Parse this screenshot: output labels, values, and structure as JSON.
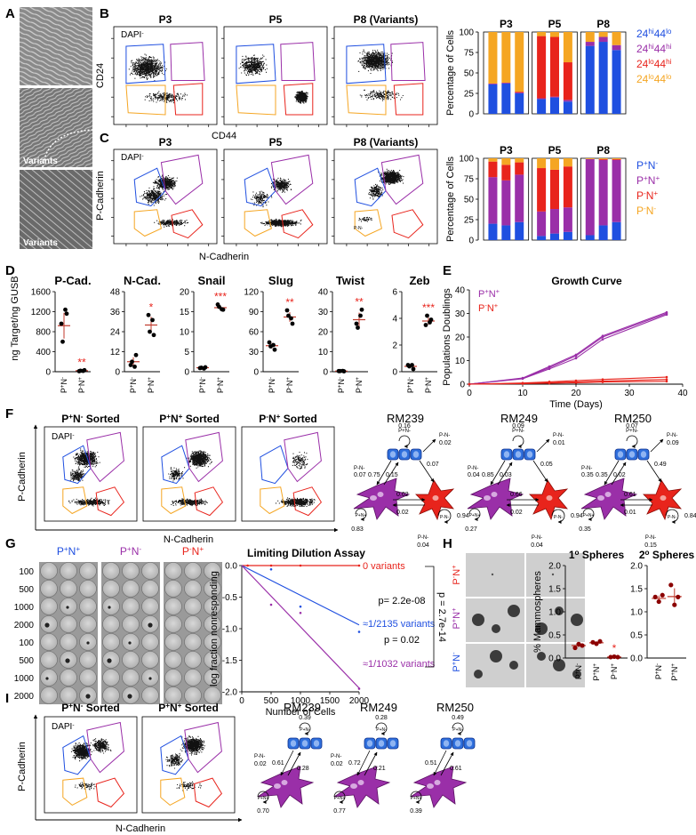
{
  "figure": {
    "panel_labels": [
      "A",
      "B",
      "C",
      "D",
      "E",
      "F",
      "G",
      "H",
      "I"
    ],
    "colors": {
      "blue": "#1f4fe0",
      "purple": "#9a2fa8",
      "red": "#e8241c",
      "orange": "#f5a623",
      "darkred": "#c80000"
    }
  },
  "panelA": {
    "variants_label": "Variants"
  },
  "panelB": {
    "gate_note": "DAPI",
    "gate_sup": "-",
    "plot_titles": [
      "P3",
      "P5",
      "P8 (Variants)"
    ],
    "xlabel": "CD44",
    "ylabel": "CD24"
  },
  "panelC": {
    "gate_note": "DAPI",
    "gate_sup": "-",
    "plot_titles": [
      "P3",
      "P5",
      "P8 (Variants)"
    ],
    "xlabel": "N-Cadherin",
    "ylabel": "P-Cadherin",
    "small_label": "P-N-"
  },
  "chart_data": [
    {
      "id": "B-bar",
      "type": "bar",
      "stacked": true,
      "title": "",
      "ylabel": "Percentage of Cells",
      "ylim": [
        0,
        100
      ],
      "yticks": [
        "0",
        "25",
        "50",
        "75",
        "100"
      ],
      "group_labels": [
        "P3",
        "P5",
        "P8"
      ],
      "series": [
        {
          "name": "24hi44lo",
          "base": "24",
          "sup1": "hi",
          "mid": "44",
          "sup2": "lo",
          "color": "#1f4fe0",
          "values": [
            36,
            37,
            25,
            18,
            20,
            15,
            83,
            88,
            78
          ]
        },
        {
          "name": "24hi44hi",
          "base": "24",
          "sup1": "hi",
          "mid": "44",
          "sup2": "hi",
          "color": "#9a2fa8",
          "values": [
            1,
            1,
            1,
            1,
            1,
            2,
            5,
            6,
            6
          ]
        },
        {
          "name": "24lo44hi",
          "base": "24",
          "sup1": "lo",
          "mid": "44",
          "sup2": "hi",
          "color": "#e8241c",
          "values": [
            0,
            0,
            1,
            76,
            73,
            46,
            0,
            0,
            0
          ]
        },
        {
          "name": "24lo44lo",
          "base": "24",
          "sup1": "lo",
          "mid": "44",
          "sup2": "lo",
          "color": "#f5a623",
          "values": [
            63,
            62,
            73,
            5,
            6,
            37,
            12,
            6,
            16
          ]
        }
      ]
    },
    {
      "id": "C-bar",
      "type": "bar",
      "stacked": true,
      "ylabel": "Percentage of Cells",
      "ylim": [
        0,
        100
      ],
      "yticks": [
        "0",
        "25",
        "50",
        "75",
        "100"
      ],
      "group_labels": [
        "P3",
        "P5",
        "P8"
      ],
      "series": [
        {
          "name": "P+N-",
          "base": "P",
          "sup1": "+",
          "mid": "N",
          "sup2": "-",
          "color": "#1f4fe0",
          "values": [
            20,
            18,
            22,
            5,
            8,
            10,
            6,
            18,
            22
          ]
        },
        {
          "name": "P+N+",
          "base": "P",
          "sup1": "+",
          "mid": "N",
          "sup2": "+",
          "color": "#9a2fa8",
          "values": [
            57,
            55,
            58,
            30,
            30,
            30,
            93,
            80,
            76
          ]
        },
        {
          "name": "P-N+",
          "base": "P",
          "sup1": "-",
          "mid": "N",
          "sup2": "+",
          "color": "#e8241c",
          "values": [
            19,
            19,
            15,
            53,
            48,
            50,
            0,
            1,
            1
          ]
        },
        {
          "name": "P-N-",
          "base": "P",
          "sup1": "-",
          "mid": "N",
          "sup2": "-",
          "color": "#f5a623",
          "values": [
            4,
            8,
            5,
            12,
            14,
            10,
            1,
            1,
            1
          ]
        }
      ]
    },
    {
      "id": "D-dot",
      "type": "scatter",
      "ylabel": "ng Target/ng GUSB",
      "x_categories": [
        [
          "P",
          "+",
          "N",
          "-"
        ],
        [
          "P",
          "-",
          "N",
          "+"
        ]
      ],
      "genes": [
        {
          "name": "P-Cad.",
          "ymax": 1600,
          "yticks": [
            "0",
            "400",
            "800",
            "1200",
            "1600"
          ],
          "sig": "**",
          "sig_on": 1,
          "points": [
            [
              960,
              1160,
              600,
              1240
            ],
            [
              10,
              30,
              20,
              15
            ]
          ],
          "means": [
            920,
            20
          ]
        },
        {
          "name": "N-Cad.",
          "ymax": 48,
          "yticks": [
            "0",
            "12",
            "24",
            "36",
            "48"
          ],
          "sig": "*",
          "sig_on": 1,
          "points": [
            [
              4,
              10,
              6,
              3
            ],
            [
              34,
              22,
              24,
              31
            ]
          ],
          "means": [
            6,
            28
          ]
        },
        {
          "name": "Snail",
          "ymax": 20,
          "yticks": [
            "0",
            "5",
            "10",
            "15",
            "20"
          ],
          "sig": "***",
          "sig_on": 1,
          "points": [
            [
              0.9,
              1.1,
              1.0,
              0.8
            ],
            [
              16.8,
              15.5,
              16.2,
              15.6
            ]
          ],
          "means": [
            1,
            16
          ]
        },
        {
          "name": "Slug",
          "ymax": 120,
          "yticks": [
            "0",
            "30",
            "60",
            "90",
            "120"
          ],
          "sig": "**",
          "sig_on": 1,
          "points": [
            [
              44,
              33,
              38,
              40
            ],
            [
              92,
              72,
              84,
              80
            ]
          ],
          "means": [
            39,
            82
          ]
        },
        {
          "name": "Twist",
          "ymax": 40,
          "yticks": [
            "0",
            "10",
            "20",
            "30",
            "40"
          ],
          "sig": "**",
          "sig_on": 1,
          "points": [
            [
              0.3,
              0.2,
              0.3,
              0.4
            ],
            [
              24,
              31,
              22,
              28
            ]
          ],
          "means": [
            0.3,
            26
          ]
        },
        {
          "name": "Zeb",
          "ymax": 6,
          "yticks": [
            "0",
            "2",
            "4",
            "6"
          ],
          "sig": "***",
          "sig_on": 1,
          "points": [
            [
              0.5,
              0.2,
              0.4,
              0.5
            ],
            [
              3.5,
              3.9,
              4.2,
              3.7
            ]
          ],
          "means": [
            0.4,
            3.8
          ]
        }
      ]
    },
    {
      "id": "E-growth",
      "type": "line",
      "title": "Growth Curve",
      "xlabel": "Time (Days)",
      "ylabel": "Populations Doublings",
      "xlim": [
        0,
        40
      ],
      "ylim": [
        0,
        40
      ],
      "xticks": [
        "0",
        "10",
        "20",
        "30",
        "40"
      ],
      "yticks": [
        "0",
        "10",
        "20",
        "30",
        "40"
      ],
      "x": [
        0,
        10,
        15,
        20,
        25,
        37
      ],
      "series": [
        {
          "name": "P+N+",
          "base": "P",
          "sup1": "+",
          "mid": "N",
          "sup2": "+",
          "color": "#9a2fa8",
          "lines": [
            [
              0,
              2.5,
              7,
              12,
              20,
              30
            ],
            [
              0,
              2.3,
              6.5,
              11,
              19,
              29.5
            ],
            [
              0,
              2.6,
              7.5,
              12.5,
              20.5,
              30.5
            ]
          ]
        },
        {
          "name": "P-N+",
          "base": "P",
          "sup1": "-",
          "mid": "N",
          "sup2": "+",
          "color": "#e8241c",
          "lines": [
            [
              0,
              0.5,
              1.0,
              1.5,
              2.0,
              3.0
            ],
            [
              0,
              0.3,
              0.6,
              1.0,
              1.3,
              2.0
            ],
            [
              0,
              0.2,
              0.4,
              0.6,
              0.9,
              1.2
            ]
          ]
        }
      ]
    },
    {
      "id": "G-ld",
      "type": "line",
      "title": "Limiting Dilution Assay",
      "xlabel": "Number of Cells",
      "ylabel": "log fraction nonresponding",
      "xlim": [
        0,
        2000
      ],
      "ylim": [
        -2.0,
        0
      ],
      "xticks": [
        "0",
        "500",
        "1000",
        "1500",
        "2000"
      ],
      "yticks": [
        "0.0",
        "-0.5",
        "-1.0",
        "-1.5",
        "-2.0"
      ],
      "series": [
        {
          "name": "0 variants",
          "color": "#e8241c",
          "x": [
            100,
            500,
            1000,
            2000
          ],
          "y": [
            0,
            0,
            0,
            0
          ],
          "fit": [
            [
              0,
              0
            ],
            [
              2000,
              0
            ]
          ]
        },
        {
          "name": "≈1/2135 variants",
          "color": "#1f4fe0",
          "x": [
            500,
            1000,
            2000
          ],
          "y": [
            -0.06,
            -0.65,
            -1.05
          ],
          "fit": [
            [
              0,
              0
            ],
            [
              2000,
              -0.94
            ]
          ]
        },
        {
          "name": "≈1/1032 variants",
          "color": "#9a2fa8",
          "x": [
            500,
            1000,
            2000
          ],
          "y": [
            -0.62,
            -0.75,
            -1.95
          ],
          "fit": [
            [
              0,
              0
            ],
            [
              2000,
              -1.94
            ]
          ]
        }
      ],
      "pvalues": {
        "p1": "p= 2.2e-08",
        "p2": "p = 0.02",
        "p3": "p = 2.7e-14"
      }
    },
    {
      "id": "H-1",
      "type": "scatter",
      "title": "1",
      "title_sup": "o",
      "title_rest": " Spheres",
      "ylabel": "% Mammospheres",
      "ylim": [
        0,
        2.0
      ],
      "yticks": [
        "0.0",
        "0.5",
        "1.0",
        "1.5",
        "2.0"
      ],
      "x_categories": [
        [
          "P",
          "+",
          "N",
          "-"
        ],
        [
          "P",
          "+",
          "N",
          "+"
        ],
        [
          "P",
          "-",
          "N",
          "+"
        ]
      ],
      "points": [
        [
          0.22,
          0.3,
          0.27
        ],
        [
          0.34,
          0.31,
          0.36
        ],
        [
          0.02,
          0.03,
          0.02
        ]
      ],
      "means": [
        0.27,
        0.33,
        0.02
      ],
      "sig": "*"
    },
    {
      "id": "H-2",
      "type": "scatter",
      "title": "2",
      "title_sup": "o",
      "title_rest": " Spheres",
      "ylim": [
        0,
        2.0
      ],
      "yticks": [
        "0.0",
        "0.5",
        "1.0",
        "1.5",
        "2.0"
      ],
      "x_categories": [
        [
          "P",
          "+",
          "N",
          "-"
        ],
        [
          "P",
          "+",
          "N",
          "+"
        ]
      ],
      "points": [
        [
          1.32,
          1.22,
          1.36
        ],
        [
          1.58,
          1.15,
          1.32
        ]
      ],
      "means": [
        1.29,
        1.33
      ]
    }
  ],
  "panelF": {
    "gate_note": "DAPI",
    "gate_sup": "-",
    "sorted_titles": [
      {
        "base": "P",
        "sup1": "+",
        "mid": "N",
        "sup2": "-",
        "rest": " Sorted"
      },
      {
        "base": "P",
        "sup1": "+",
        "mid": "N",
        "sup2": "+",
        "rest": " Sorted"
      },
      {
        "base": "P",
        "sup1": "-",
        "mid": "N",
        "sup2": "+",
        "rest": " Sorted"
      }
    ],
    "xlabel": "N-Cadherin",
    "ylabel": "P-Cadherin",
    "models": [
      {
        "name": "RM239",
        "self_blue": "0.16",
        "blue_out": "0.02",
        "p_in_blue": "0.07",
        "b_to_p": "0.75",
        "p_to_b": "0.15",
        "p_to_r": "0.02",
        "r_to_p": "0.02",
        "b_to_r": "0.07",
        "self_purple": "0.83",
        "self_red": "0.94",
        "r_out": "0.04"
      },
      {
        "name": "RM249",
        "self_blue": "0.09",
        "blue_out": "0.01",
        "p_in_blue": "0.04",
        "b_to_p": "0.85",
        "p_to_b": "0.03",
        "p_to_r": "0.66",
        "r_to_p": "0.02",
        "b_to_r": "0.05",
        "self_purple": "0.27",
        "self_red": "0.94",
        "r_out": "0.04"
      },
      {
        "name": "RM250",
        "self_blue": "0.07",
        "blue_out": "0.09",
        "p_in_blue": "0.35",
        "b_to_p": "0.35",
        "p_to_b": "0.02",
        "p_to_r": "0.61",
        "r_to_p": "0.01",
        "b_to_r": "0.49",
        "self_purple": "0.35",
        "self_red": "0.84",
        "r_out": "0.15"
      }
    ],
    "node_labels": {
      "pm_nm": "P-N-",
      "pp_np": "P+N+",
      "pp_nm": "P+N-"
    }
  },
  "panelG": {
    "col_headers": [
      {
        "base": "P",
        "sup1": "+",
        "mid": "N",
        "sup2": "+",
        "color": "#1f4fe0"
      },
      {
        "base": "P",
        "sup1": "+",
        "mid": "N",
        "sup2": "-",
        "color": "#9a2fa8"
      },
      {
        "base": "P",
        "sup1": "-",
        "mid": "N",
        "sup2": "+",
        "color": "#e8241c"
      }
    ],
    "row_labels": [
      "100",
      "500",
      "1000",
      "2000",
      "100",
      "500",
      "1000",
      "2000"
    ]
  },
  "panelH": {
    "row_labels": [
      {
        "base": "P",
        "sup1": "-",
        "mid": "N",
        "sup2": "+",
        "color": "#e8241c"
      },
      {
        "base": "P",
        "sup1": "+",
        "mid": "N",
        "sup2": "+",
        "color": "#9a2fa8"
      },
      {
        "base": "P",
        "sup1": "+",
        "mid": "N",
        "sup2": "-",
        "color": "#1f4fe0"
      }
    ]
  },
  "panelI": {
    "gate_note": "DAPI",
    "gate_sup": "-",
    "sorted_titles": [
      {
        "base": "P",
        "sup1": "+",
        "mid": "N",
        "sup2": "-",
        "rest": " Sorted"
      },
      {
        "base": "P",
        "sup1": "+",
        "mid": "N",
        "sup2": "+",
        "rest": " Sorted"
      }
    ],
    "xlabel": "N-Cadherin",
    "ylabel": "P-Cadherin",
    "models": [
      {
        "name": "RM239",
        "self_blue": "0.39",
        "b_in": "0.02",
        "b_to_p": "0.61",
        "p_to_b": "0.28",
        "self_purple": "0.70"
      },
      {
        "name": "RM249",
        "self_blue": "0.28",
        "b_in": "0.02",
        "b_to_p": "0.72",
        "p_to_b": "0.21",
        "self_purple": "0.77"
      },
      {
        "name": "RM250",
        "self_blue": "0.49",
        "b_in": "",
        "b_to_p": "0.51",
        "p_to_b": "0.61",
        "self_purple": "0.39"
      }
    ]
  }
}
